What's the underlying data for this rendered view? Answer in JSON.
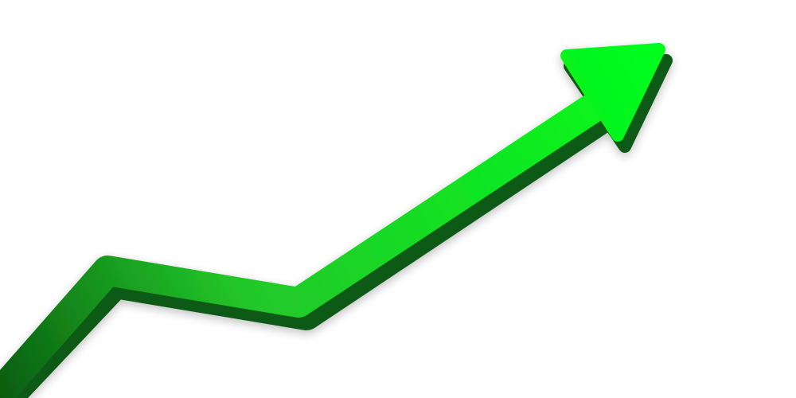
{
  "illustration": {
    "subject": "upward-trend-arrow",
    "direction": "up-right",
    "colors": {
      "background": "#ffffff",
      "arrow_light": "#00ff1a",
      "arrow_mid": "#23c72a",
      "arrow_dark": "#0a5c10",
      "side_face": "#0b5a12"
    }
  }
}
